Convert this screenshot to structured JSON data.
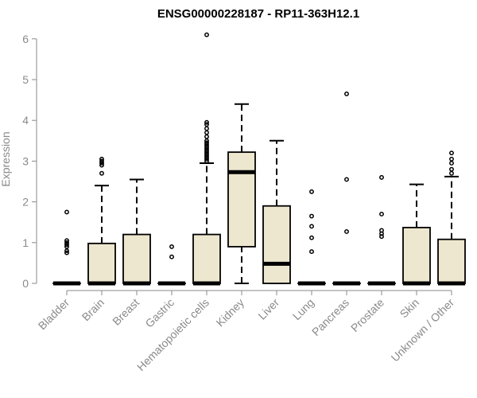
{
  "chart_data": {
    "type": "box",
    "title": "ENSG00000228187 - RP11-363H12.1",
    "xlabel": "",
    "ylabel": "Expression",
    "ylim": [
      0,
      6.2
    ],
    "yticks": [
      0,
      1,
      2,
      3,
      4,
      5,
      6
    ],
    "categories": [
      "Bladder",
      "Brain",
      "Breast",
      "Gastric",
      "Hematopoietic cells",
      "Kidney",
      "Liver",
      "Lung",
      "Pancreas",
      "Prostate",
      "Skin",
      "Unknown / Other"
    ],
    "boxes": [
      {
        "category": "Bladder",
        "q1": 0,
        "median": 0,
        "q3": 0,
        "whisker_low": 0,
        "whisker_high": 0,
        "outliers": [
          0.75,
          0.8,
          0.9,
          0.95,
          1.0,
          1.05,
          1.75
        ]
      },
      {
        "category": "Brain",
        "q1": 0,
        "median": 0,
        "q3": 0.98,
        "whisker_low": 0,
        "whisker_high": 2.4,
        "outliers": [
          2.7,
          2.9,
          2.95,
          3.0,
          3.05
        ]
      },
      {
        "category": "Breast",
        "q1": 0,
        "median": 0,
        "q3": 1.2,
        "whisker_low": 0,
        "whisker_high": 2.55,
        "outliers": []
      },
      {
        "category": "Gastric",
        "q1": 0,
        "median": 0,
        "q3": 0,
        "whisker_low": 0,
        "whisker_high": 0,
        "outliers": [
          0.65,
          0.9
        ]
      },
      {
        "category": "Hematopoietic cells",
        "q1": 0,
        "median": 0,
        "q3": 1.2,
        "whisker_low": 0,
        "whisker_high": 2.95,
        "outliers": [
          3.0,
          3.05,
          3.1,
          3.15,
          3.2,
          3.25,
          3.3,
          3.35,
          3.4,
          3.45,
          3.5,
          3.6,
          3.7,
          3.8,
          3.9,
          3.95,
          6.1
        ]
      },
      {
        "category": "Kidney",
        "q1": 0.9,
        "median": 2.73,
        "q3": 3.22,
        "whisker_low": 0,
        "whisker_high": 4.4,
        "outliers": []
      },
      {
        "category": "Liver",
        "q1": 0,
        "median": 0.48,
        "q3": 1.9,
        "whisker_low": 0,
        "whisker_high": 3.5,
        "outliers": []
      },
      {
        "category": "Lung",
        "q1": 0,
        "median": 0,
        "q3": 0,
        "whisker_low": 0,
        "whisker_high": 0,
        "outliers": [
          0.78,
          1.12,
          1.4,
          1.65,
          2.25
        ]
      },
      {
        "category": "Pancreas",
        "q1": 0,
        "median": 0,
        "q3": 0,
        "whisker_low": 0,
        "whisker_high": 0,
        "outliers": [
          1.27,
          2.55,
          4.65
        ]
      },
      {
        "category": "Prostate",
        "q1": 0,
        "median": 0,
        "q3": 0,
        "whisker_low": 0,
        "whisker_high": 0,
        "outliers": [
          1.15,
          1.22,
          1.3,
          1.7,
          2.6
        ]
      },
      {
        "category": "Skin",
        "q1": 0,
        "median": 0,
        "q3": 1.37,
        "whisker_low": 0,
        "whisker_high": 2.43,
        "outliers": []
      },
      {
        "category": "Unknown / Other",
        "q1": 0,
        "median": 0,
        "q3": 1.08,
        "whisker_low": 0,
        "whisker_high": 2.62,
        "outliers": [
          2.7,
          2.8,
          2.95,
          3.05,
          3.2
        ]
      }
    ],
    "colors": {
      "box_fill": "#ede7cf",
      "stroke": "#000000",
      "axis_text": "#8a8a8a",
      "axis_line": "#8a8a8a"
    },
    "grid": false,
    "legend": "none"
  }
}
